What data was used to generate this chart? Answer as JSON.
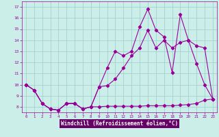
{
  "title": "",
  "xlabel": "Windchill (Refroidissement éolien,°C)",
  "ylabel": "",
  "bg_color": "#cceee8",
  "plot_bg_color": "#cceee8",
  "line_color": "#990099",
  "grid_color": "#99cccc",
  "xlabel_bg": "#660066",
  "xlabel_fg": "#ffffff",
  "xlim": [
    -0.5,
    23.5
  ],
  "ylim": [
    7.5,
    17.5
  ],
  "xticks": [
    0,
    1,
    2,
    3,
    4,
    5,
    6,
    7,
    8,
    9,
    10,
    11,
    12,
    13,
    14,
    15,
    16,
    17,
    18,
    19,
    20,
    21,
    22,
    23
  ],
  "yticks": [
    8,
    9,
    10,
    11,
    12,
    13,
    14,
    15,
    16,
    17
  ],
  "line1_x": [
    0,
    1,
    2,
    3,
    4,
    5,
    6,
    7,
    8,
    9,
    10,
    11,
    12,
    13,
    14,
    15,
    16,
    17,
    18,
    19,
    20,
    21,
    22,
    23
  ],
  "line1_y": [
    10.0,
    9.5,
    8.3,
    7.8,
    7.7,
    8.3,
    8.3,
    7.8,
    8.0,
    9.8,
    11.5,
    13.0,
    12.6,
    13.0,
    15.2,
    16.8,
    14.9,
    14.3,
    11.1,
    16.3,
    14.0,
    11.9,
    10.0,
    8.7
  ],
  "line2_x": [
    0,
    1,
    2,
    3,
    4,
    5,
    6,
    7,
    8,
    9,
    10,
    11,
    12,
    13,
    14,
    15,
    16,
    17,
    18,
    19,
    20,
    21,
    22,
    23
  ],
  "line2_y": [
    10.0,
    9.5,
    8.3,
    7.8,
    7.7,
    8.3,
    8.3,
    7.8,
    8.0,
    8.0,
    8.05,
    8.05,
    8.05,
    8.05,
    8.05,
    8.1,
    8.1,
    8.1,
    8.1,
    8.15,
    8.2,
    8.3,
    8.6,
    8.7
  ],
  "line3_x": [
    0,
    1,
    2,
    3,
    4,
    5,
    6,
    7,
    8,
    9,
    10,
    11,
    12,
    13,
    14,
    15,
    16,
    17,
    18,
    19,
    20,
    21,
    22,
    23
  ],
  "line3_y": [
    10.0,
    9.5,
    8.3,
    7.8,
    7.7,
    8.3,
    8.3,
    7.8,
    8.0,
    9.8,
    9.9,
    10.5,
    11.5,
    12.6,
    13.3,
    14.9,
    13.3,
    14.0,
    13.3,
    13.8,
    14.0,
    13.5,
    13.3,
    8.7
  ]
}
